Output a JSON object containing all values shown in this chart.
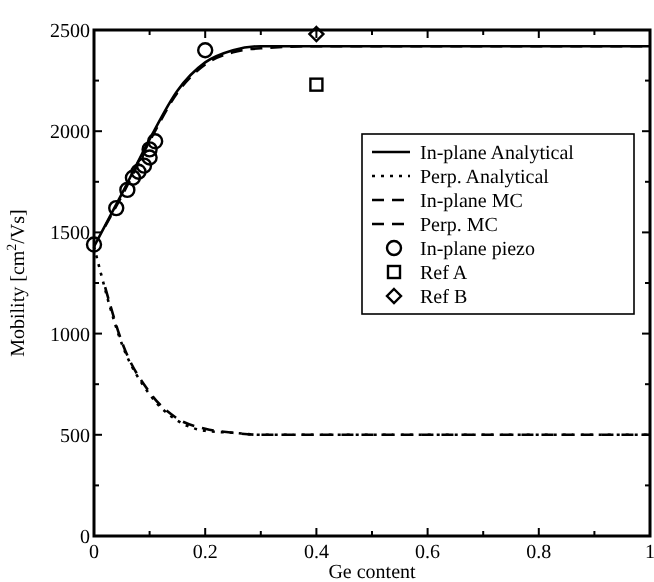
{
  "chart_data": {
    "type": "line",
    "xlabel": "Ge content",
    "ylabel": "Mobility [cm$^{2}$/Vs]",
    "xlim": [
      0,
      1
    ],
    "ylim": [
      0,
      2500
    ],
    "xticks": [
      0,
      0.2,
      0.4,
      0.6,
      0.8,
      1
    ],
    "yticks": [
      0,
      500,
      1000,
      1500,
      2000,
      2500
    ],
    "grid": false,
    "legend": "right",
    "series": [
      {
        "name": "In-plane Analytical",
        "type": "line",
        "line_style": "solid",
        "color": "#000000",
        "x": [
          0,
          0.05,
          0.1,
          0.15,
          0.2,
          0.25,
          0.3,
          0.4,
          0.6,
          0.8,
          1
        ],
        "values": [
          1430,
          1690,
          1960,
          2200,
          2340,
          2400,
          2420,
          2420,
          2420,
          2420,
          2420
        ]
      },
      {
        "name": "Perp. Analytical",
        "type": "line",
        "line_style": "dotted",
        "color": "#000000",
        "x": [
          0,
          0.05,
          0.1,
          0.15,
          0.2,
          0.25,
          0.3,
          0.4,
          0.6,
          0.8,
          1
        ],
        "values": [
          1430,
          950,
          700,
          570,
          520,
          510,
          500,
          500,
          500,
          500,
          500
        ]
      },
      {
        "name": "In-plane MC",
        "type": "line",
        "line_style": "dashed",
        "color": "#000000",
        "x": [
          0.02,
          0.05,
          0.1,
          0.15,
          0.2,
          0.25,
          0.3,
          0.4,
          0.6,
          0.8,
          1
        ],
        "values": [
          1530,
          1680,
          1950,
          2190,
          2330,
          2390,
          2410,
          2420,
          2420,
          2420,
          2420
        ]
      },
      {
        "name": "Perp. MC",
        "type": "line",
        "line_style": "dashed",
        "color": "#000000",
        "x": [
          0.02,
          0.05,
          0.1,
          0.15,
          0.2,
          0.25,
          0.3,
          0.4,
          0.6,
          0.8,
          1
        ],
        "values": [
          1230,
          960,
          710,
          580,
          530,
          510,
          500,
          500,
          500,
          500,
          500
        ]
      },
      {
        "name": "In-plane piezo",
        "type": "scatter",
        "marker": "circle",
        "color": "#000000",
        "x": [
          0,
          0.04,
          0.06,
          0.07,
          0.08,
          0.09,
          0.1,
          0.1,
          0.11,
          0.2
        ],
        "values": [
          1440,
          1620,
          1710,
          1770,
          1800,
          1830,
          1870,
          1910,
          1950,
          2400
        ]
      },
      {
        "name": "Ref A",
        "type": "scatter",
        "marker": "square",
        "color": "#000000",
        "x": [
          0.4
        ],
        "values": [
          2230
        ]
      },
      {
        "name": "Ref B",
        "type": "scatter",
        "marker": "diamond",
        "color": "#000000",
        "x": [
          0.4
        ],
        "values": [
          2480
        ]
      }
    ]
  }
}
